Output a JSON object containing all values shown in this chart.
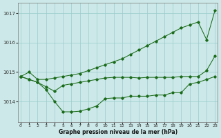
{
  "xlabel": "Graphe pression niveau de la mer (hPa)",
  "background_color": "#cce8e8",
  "grid_color": "#99cccc",
  "line_color": "#1a6b1a",
  "ylim": [
    1013.3,
    1017.35
  ],
  "xlim": [
    -0.3,
    23.3
  ],
  "yticks": [
    1014,
    1015,
    1016,
    1017
  ],
  "xticks": [
    0,
    1,
    2,
    3,
    4,
    5,
    6,
    7,
    8,
    9,
    10,
    11,
    12,
    13,
    14,
    15,
    16,
    17,
    18,
    19,
    20,
    21,
    22,
    23
  ],
  "series1": [
    1014.85,
    1015.0,
    1014.75,
    1014.75,
    1014.8,
    1014.85,
    1014.9,
    1014.95,
    1015.05,
    1015.15,
    1015.25,
    1015.35,
    1015.45,
    1015.6,
    1015.75,
    1015.9,
    1016.05,
    1016.2,
    1016.35,
    1016.5,
    1016.6,
    1016.7,
    1016.1,
    1017.1
  ],
  "series2": [
    1014.85,
    1014.75,
    1014.65,
    1014.5,
    1014.35,
    1014.55,
    1014.6,
    1014.65,
    1014.7,
    1014.75,
    1014.8,
    1014.82,
    1014.82,
    1014.82,
    1014.8,
    1014.82,
    1014.82,
    1014.82,
    1014.82,
    1014.85,
    1014.85,
    1014.85,
    1015.05,
    1015.55
  ],
  "series3": [
    1014.85,
    1014.75,
    1014.65,
    1014.4,
    1014.0,
    1013.65,
    1013.65,
    1013.67,
    1013.75,
    1013.85,
    1014.1,
    1014.12,
    1014.12,
    1014.18,
    1014.18,
    1014.18,
    1014.22,
    1014.22,
    1014.3,
    1014.3,
    1014.6,
    1014.65,
    1014.75,
    1014.85
  ]
}
